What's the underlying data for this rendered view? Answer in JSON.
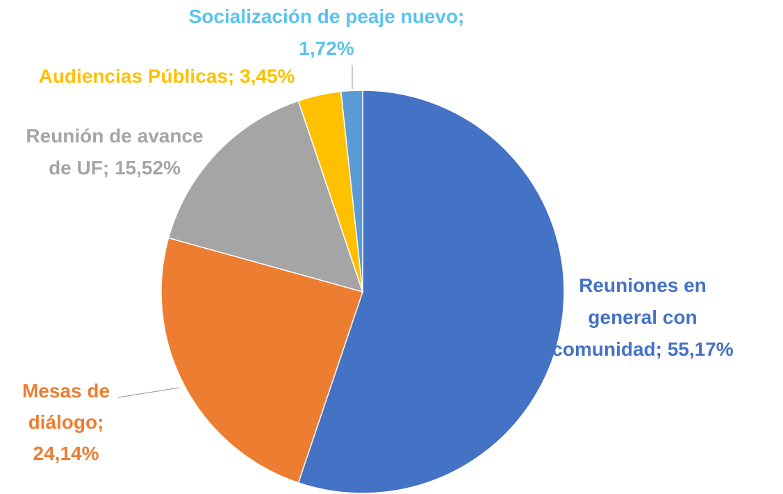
{
  "chart_data": {
    "type": "pie",
    "values": [
      55.17,
      24.14,
      15.52,
      3.45,
      1.72
    ],
    "value_labels": [
      "Reuniones en general con comunidad; 55,17%",
      "Mesas de diálogo; 24,14%",
      "Reunión de avance de UF; 15,52%",
      "Audiencias Públicas; 3,45%",
      "Socialización de peaje nuevo; 1,72%"
    ],
    "colors": [
      "#4472C4",
      "#ED7D31",
      "#A5A5A5",
      "#FFC000",
      "#5B9BD5"
    ],
    "label_colors": [
      "#4472C4",
      "#ED7D31",
      "#A5A5A5",
      "#FFC000",
      "#5BC3EE"
    ]
  }
}
